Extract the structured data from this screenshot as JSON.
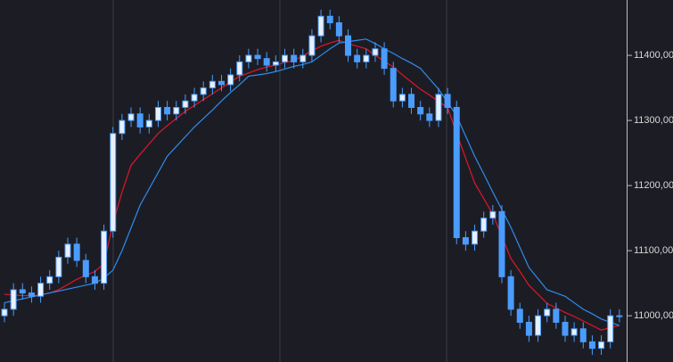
{
  "chart_data": {
    "type": "candlestick",
    "candle_color": "#4a9cff",
    "candle_fill": "#e8f0ff",
    "open": [
      11000,
      11010,
      11040,
      11035,
      11030,
      11050,
      11060,
      11090,
      11110,
      11085,
      11060,
      11050,
      11130,
      11280,
      11300,
      11310,
      11290,
      11300,
      11320,
      11310,
      11320,
      11330,
      11340,
      11350,
      11360,
      11355,
      11370,
      11390,
      11400,
      11395,
      11385,
      11390,
      11400,
      11390,
      11400,
      11430,
      11460,
      11450,
      11430,
      11400,
      11390,
      11400,
      11410,
      11380,
      11330,
      11340,
      11320,
      11310,
      11300,
      11340,
      11320,
      11120,
      11110,
      11130,
      11150,
      11160,
      11060,
      11010,
      10990,
      10970,
      11000,
      11010,
      10990,
      10970,
      10980,
      10960,
      10950,
      10960,
      11000
    ],
    "high": [
      11020,
      11050,
      11050,
      11045,
      11060,
      11070,
      11100,
      11120,
      11120,
      11095,
      11070,
      11140,
      11290,
      11310,
      11320,
      11320,
      11310,
      11330,
      11330,
      11330,
      11340,
      11350,
      11360,
      11370,
      11370,
      11380,
      11400,
      11410,
      11410,
      11405,
      11400,
      11410,
      11410,
      11410,
      11440,
      11470,
      11470,
      11460,
      11440,
      11410,
      11410,
      11420,
      11420,
      11390,
      11350,
      11350,
      11330,
      11320,
      11350,
      11350,
      11330,
      11130,
      11140,
      11160,
      11170,
      11170,
      11070,
      11020,
      11000,
      11010,
      11020,
      11020,
      11000,
      10990,
      10990,
      10970,
      10970,
      11010,
      11010
    ],
    "low": [
      10990,
      11000,
      11025,
      11020,
      11020,
      11040,
      11050,
      11080,
      11075,
      11050,
      11040,
      11040,
      11120,
      11270,
      11290,
      11280,
      11280,
      11290,
      11300,
      11300,
      11310,
      11320,
      11330,
      11340,
      11345,
      11345,
      11360,
      11380,
      11385,
      11375,
      11375,
      11380,
      11380,
      11380,
      11390,
      11420,
      11440,
      11420,
      11390,
      11380,
      11380,
      11390,
      11370,
      11320,
      11320,
      11310,
      11300,
      11290,
      11290,
      11310,
      11110,
      11100,
      11100,
      11120,
      11140,
      11050,
      11000,
      10980,
      10960,
      10960,
      10990,
      10980,
      10960,
      10960,
      10950,
      10940,
      10940,
      10950,
      10990
    ],
    "close": [
      11010,
      11040,
      11035,
      11030,
      11050,
      11060,
      11090,
      11110,
      11085,
      11060,
      11050,
      11130,
      11280,
      11300,
      11310,
      11290,
      11300,
      11320,
      11310,
      11320,
      11330,
      11340,
      11350,
      11360,
      11355,
      11370,
      11390,
      11400,
      11395,
      11385,
      11390,
      11400,
      11390,
      11400,
      11430,
      11460,
      11450,
      11430,
      11400,
      11390,
      11400,
      11410,
      11380,
      11330,
      11340,
      11320,
      11310,
      11300,
      11340,
      11320,
      11120,
      11110,
      11130,
      11150,
      11160,
      11060,
      11010,
      10990,
      10970,
      11000,
      11010,
      10990,
      10970,
      10980,
      10960,
      10950,
      10960,
      11000,
      11000
    ],
    "series": [
      {
        "color": "#e0162b",
        "values": [
          11033,
          11032,
          11031,
          11031,
          11032,
          11035,
          11040,
          11048,
          11056,
          11062,
          11068,
          11080,
          11142,
          11190,
          11231,
          11248,
          11264,
          11280,
          11292,
          11303,
          11314,
          11323,
          11332,
          11341,
          11350,
          11359,
          11368,
          11373,
          11378,
          11382,
          11385,
          11389,
          11392,
          11399,
          11407,
          11414,
          11419,
          11423,
          11418,
          11414,
          11410,
          11400,
          11391,
          11382,
          11370,
          11359,
          11348,
          11339,
          11329,
          11320,
          11280,
          11242,
          11204,
          11180,
          11156,
          11122,
          11088,
          11068,
          11047,
          11033,
          11019,
          11012,
          11005,
          10999,
          10992,
          10985,
          10978,
          10982,
          10985
        ]
      },
      {
        "color": "#2e8cf0",
        "values": [
          11020,
          11023,
          11026,
          11029,
          11032,
          11035,
          11038,
          11041,
          11044,
          11047,
          11050,
          11058,
          11070,
          11100,
          11135,
          11170,
          11195,
          11220,
          11245,
          11260,
          11275,
          11290,
          11303,
          11316,
          11330,
          11343,
          11355,
          11368,
          11370,
          11372,
          11375,
          11379,
          11383,
          11386,
          11390,
          11400,
          11410,
          11419,
          11421,
          11423,
          11425,
          11418,
          11410,
          11403,
          11395,
          11388,
          11380,
          11364,
          11348,
          11328,
          11307,
          11276,
          11245,
          11218,
          11190,
          11163,
          11136,
          11105,
          11074,
          11057,
          11040,
          11035,
          11030,
          11020,
          11010,
          11003,
          10995,
          10990,
          10985
        ]
      }
    ],
    "ylim": [
      10929,
      11485
    ],
    "yticks": [
      {
        "value": 11000,
        "label": "11000,00"
      },
      {
        "value": 11100,
        "label": "11100,00"
      },
      {
        "value": 11200,
        "label": "11200,00"
      },
      {
        "value": 11300,
        "label": "11300,00"
      },
      {
        "value": 11400,
        "label": "11400,00"
      }
    ]
  }
}
